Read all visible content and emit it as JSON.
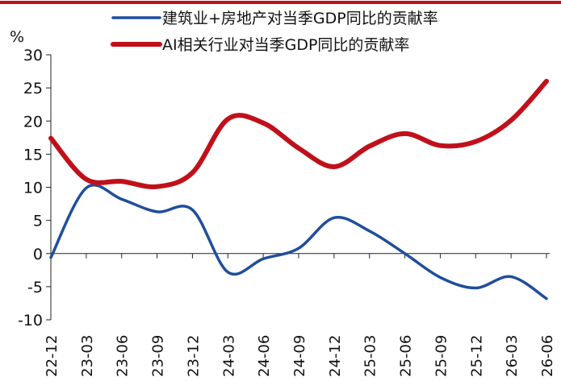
{
  "chart_data": {
    "type": "line",
    "title": "",
    "xlabel": "",
    "ylabel": "%",
    "ylim": [
      -10,
      30
    ],
    "yticks": [
      -10,
      -5,
      0,
      5,
      10,
      15,
      20,
      25,
      30
    ],
    "grid": false,
    "legend_position": "top",
    "categories": [
      "22-12",
      "23-03",
      "23-06",
      "23-09",
      "23-12",
      "24-03",
      "24-06",
      "24-09",
      "24-12",
      "25-03",
      "25-06",
      "25-09",
      "25-12",
      "26-03",
      "26-06"
    ],
    "series": [
      {
        "name": "建筑业+房地产对当季GDP同比的贡献率",
        "color": "#1f4e9c",
        "values": [
          -0.6,
          9.9,
          8.2,
          6.3,
          6.6,
          -2.8,
          -0.8,
          0.8,
          5.4,
          3.4,
          0.0,
          -3.6,
          -5.2,
          -3.5,
          -6.8
        ]
      },
      {
        "name": "AI相关行业对当季GDP同比的贡献率",
        "color": "#c0101a",
        "values": [
          17.4,
          11.2,
          10.9,
          10.1,
          12.2,
          20.3,
          19.7,
          15.9,
          13.1,
          16.2,
          18.1,
          16.3,
          16.9,
          20.1,
          26.0
        ]
      }
    ]
  }
}
